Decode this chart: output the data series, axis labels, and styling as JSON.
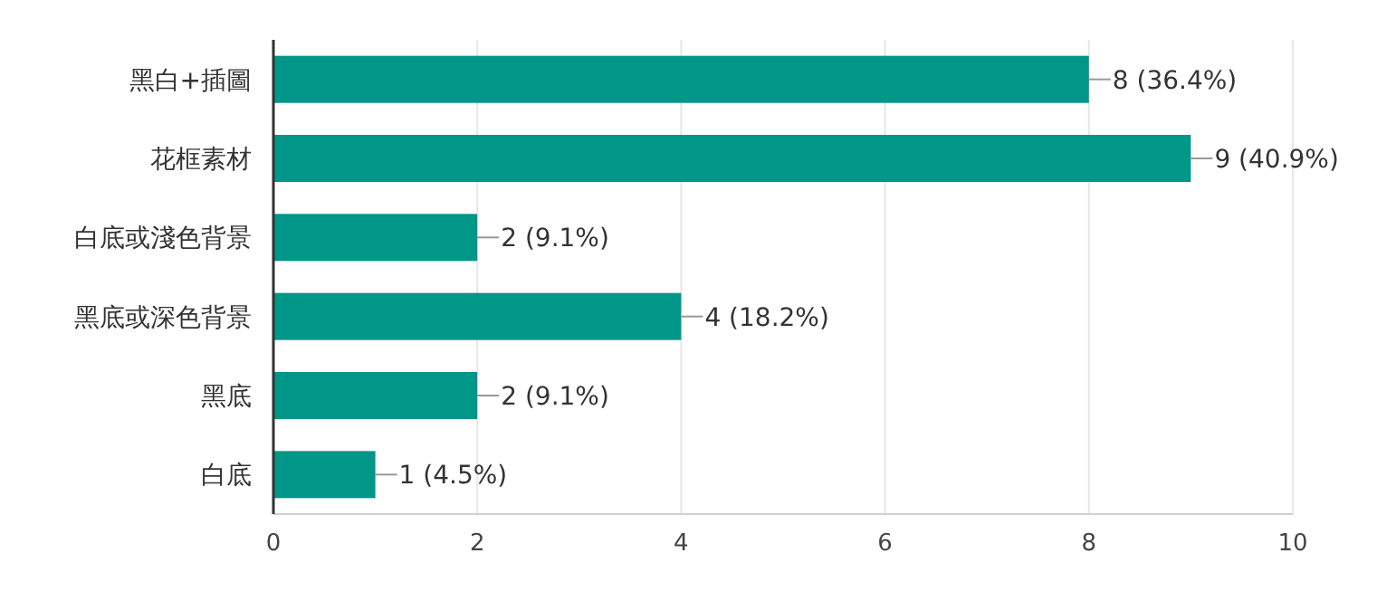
{
  "chart_data": {
    "type": "bar",
    "orientation": "horizontal",
    "categories": [
      "黑白+插圖",
      "花框素材",
      "白底或淺色背景",
      "黑底或深色背景",
      "黑底",
      "白底"
    ],
    "values": [
      8,
      9,
      2,
      4,
      2,
      1
    ],
    "value_labels": [
      "8 (36.4%)",
      "9 (40.9%)",
      "2 (9.1%)",
      "4 (18.2%)",
      "2 (9.1%)",
      "1 (4.5%)"
    ],
    "color": "#009688",
    "xlim": [
      0,
      10
    ],
    "xticks": [
      0,
      2,
      4,
      6,
      8,
      10
    ],
    "grid": "x"
  }
}
